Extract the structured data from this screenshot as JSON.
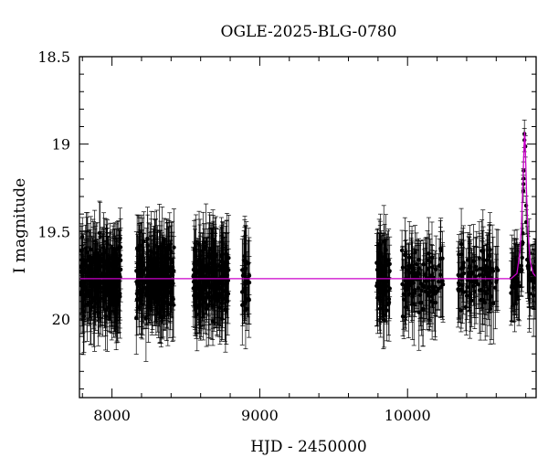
{
  "chart_data": {
    "type": "scatter",
    "title": "OGLE-2025-BLG-0780",
    "xlabel": "HJD - 2450000",
    "ylabel": "I magnitude",
    "xlim": [
      7780,
      10870
    ],
    "ylim": [
      20.45,
      18.5
    ],
    "y_inverted": true,
    "grid": false,
    "x_ticks": [
      8000,
      9000,
      10000
    ],
    "y_ticks": [
      18.5,
      19,
      19.5,
      20
    ],
    "x_tick_labels": [
      "8000",
      "9000",
      "10000"
    ],
    "y_tick_labels": [
      "18.5",
      "19",
      "19.5",
      "20"
    ],
    "colors": {
      "points": "#000000",
      "model": "#cc00cc"
    },
    "baseline_mag": 19.77,
    "typical_error_mag": 0.18,
    "seasons": [
      {
        "x_start": 7790,
        "x_end": 8060,
        "mean_mag": 19.77,
        "scatter_mag": 0.18,
        "n_points": 260
      },
      {
        "x_start": 8160,
        "x_end": 8420,
        "mean_mag": 19.77,
        "scatter_mag": 0.18,
        "n_points": 250
      },
      {
        "x_start": 8550,
        "x_end": 8790,
        "mean_mag": 19.77,
        "scatter_mag": 0.18,
        "n_points": 240
      },
      {
        "x_start": 8880,
        "x_end": 8930,
        "mean_mag": 19.8,
        "scatter_mag": 0.16,
        "n_points": 30
      },
      {
        "x_start": 9790,
        "x_end": 9880,
        "mean_mag": 19.77,
        "scatter_mag": 0.2,
        "n_points": 80
      },
      {
        "x_start": 9960,
        "x_end": 10240,
        "mean_mag": 19.77,
        "scatter_mag": 0.17,
        "n_points": 120
      },
      {
        "x_start": 10340,
        "x_end": 10620,
        "mean_mag": 19.77,
        "scatter_mag": 0.17,
        "n_points": 110
      },
      {
        "x_start": 10700,
        "x_end": 10870,
        "mean_mag": 19.77,
        "scatter_mag": 0.09,
        "n_points": 80
      }
    ],
    "event": {
      "t0": 10792,
      "peak_mag": 18.92,
      "tE": 22
    },
    "model": {
      "name": "",
      "type": "line",
      "x": [
        7780,
        10700,
        10740,
        10760,
        10770,
        10780,
        10785,
        10790,
        10792,
        10795,
        10800,
        10805,
        10815,
        10830,
        10850,
        10870
      ],
      "y": [
        19.77,
        19.77,
        19.74,
        19.62,
        19.48,
        19.25,
        19.1,
        18.97,
        18.93,
        18.97,
        19.12,
        19.28,
        19.5,
        19.67,
        19.74,
        19.76
      ]
    }
  }
}
